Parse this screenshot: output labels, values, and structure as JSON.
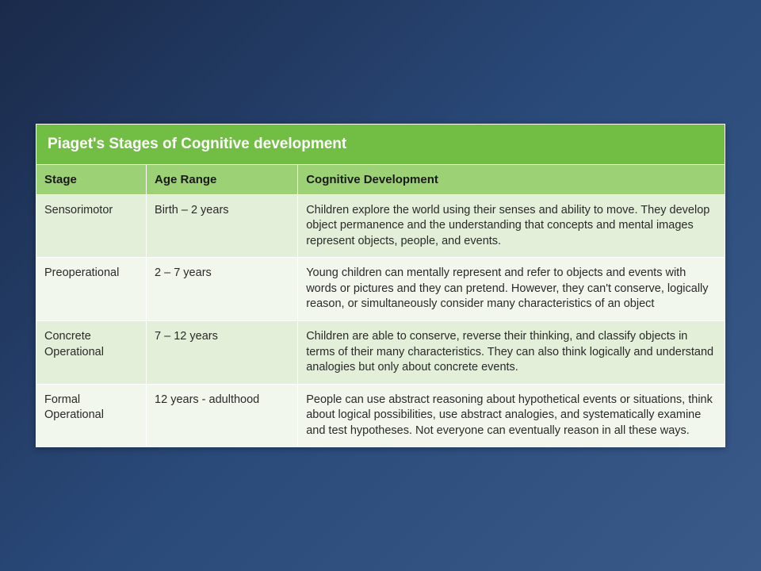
{
  "table": {
    "title": "Piaget's Stages of Cognitive development",
    "columns": [
      "Stage",
      "Age Range",
      "Cognitive Development"
    ],
    "rows": [
      {
        "stage": "Sensorimotor",
        "age": "Birth – 2 years",
        "desc": "Children explore the world using their senses and ability to move. They develop object permanence and the understanding that concepts and mental images represent objects, people, and events."
      },
      {
        "stage": "Preoperational",
        "age": "2 – 7 years",
        "desc": "Young children can mentally represent and refer to objects and events with words or pictures and they can pretend. However, they can't conserve, logically reason, or simultaneously consider many characteristics of an object"
      },
      {
        "stage": "Concrete Operational",
        "age": "7 – 12 years",
        "desc": "Children are able to conserve, reverse their thinking, and classify objects in terms of their many characteristics. They can also think logically and understand analogies but only about concrete events."
      },
      {
        "stage": "Formal Operational",
        "age": "12 years - adulthood",
        "desc": "People can use abstract reasoning about hypothetical events or situations, think about logical possibilities, use abstract analogies, and systematically examine and test hypotheses. Not everyone can eventually reason in all these ways."
      }
    ],
    "colors": {
      "title_bg": "#72be44",
      "title_fg": "#ffffff",
      "header_bg": "#9cd275",
      "band_a": "#e4efda",
      "band_b": "#f2f7ed",
      "text": "#2a2a2a",
      "border": "#ffffff"
    },
    "font": {
      "family": "Century Gothic",
      "title_size": 19,
      "header_size": 15,
      "body_size": 14.5
    },
    "col_widths_pct": [
      16,
      22,
      62
    ]
  },
  "background": {
    "gradient_from": "#1a2a4a",
    "gradient_to": "#3a5a8a"
  }
}
